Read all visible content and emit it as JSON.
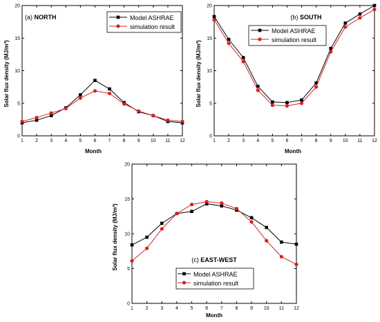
{
  "chart_data": [
    {
      "type": "line",
      "title_prefix": "(a)",
      "title": "NORTH",
      "xlabel": "Month",
      "ylabel": "Solar flux density (MJ/m²)",
      "xlim": [
        1,
        12
      ],
      "ylim": [
        0,
        20
      ],
      "x": [
        1,
        2,
        3,
        4,
        5,
        6,
        7,
        8,
        9,
        10,
        11,
        12
      ],
      "xticks": [
        1,
        2,
        3,
        4,
        5,
        6,
        7,
        8,
        9,
        10,
        11,
        12
      ],
      "yticks": [
        0,
        5,
        10,
        15,
        20
      ],
      "legend_position": "top-right",
      "series": [
        {
          "name": "Model ASHRAE",
          "color": "#000000",
          "marker": "square",
          "values": [
            2.0,
            2.4,
            3.1,
            4.3,
            6.3,
            8.5,
            7.2,
            5.1,
            3.7,
            3.1,
            2.2,
            2.0
          ]
        },
        {
          "name": "simulation result",
          "color": "#d62020",
          "marker": "circle",
          "values": [
            2.2,
            2.8,
            3.5,
            4.2,
            5.8,
            6.9,
            6.5,
            4.9,
            3.8,
            3.1,
            2.4,
            2.2
          ]
        }
      ]
    },
    {
      "type": "line",
      "title_prefix": "(b)",
      "title": "SOUTH",
      "xlabel": "Month",
      "ylabel": "Solar flux density (MJ/m²)",
      "xlim": [
        1,
        12
      ],
      "ylim": [
        0,
        20
      ],
      "x": [
        1,
        2,
        3,
        4,
        5,
        6,
        7,
        8,
        9,
        10,
        11,
        12
      ],
      "xticks": [
        1,
        2,
        3,
        4,
        5,
        6,
        7,
        8,
        9,
        10,
        11,
        12
      ],
      "yticks": [
        0,
        5,
        10,
        15,
        20
      ],
      "legend_position": "top-right",
      "series": [
        {
          "name": "Model ASHRAE",
          "color": "#000000",
          "marker": "square",
          "values": [
            18.3,
            14.8,
            12.0,
            7.6,
            5.2,
            5.1,
            5.5,
            8.1,
            13.4,
            17.3,
            18.7,
            20.0
          ]
        },
        {
          "name": "simulation result",
          "color": "#d62020",
          "marker": "circle",
          "values": [
            17.8,
            14.2,
            11.4,
            7.0,
            4.7,
            4.6,
            5.0,
            7.5,
            12.9,
            16.7,
            18.1,
            19.4
          ]
        }
      ]
    },
    {
      "type": "line",
      "title_prefix": "(c)",
      "title": "EAST-WEST",
      "xlabel": "Month",
      "ylabel": "Solar flux density (MJ/m²)",
      "xlim": [
        1,
        12
      ],
      "ylim": [
        0,
        20
      ],
      "x": [
        1,
        2,
        3,
        4,
        5,
        6,
        7,
        8,
        9,
        10,
        11,
        12
      ],
      "xticks": [
        1,
        2,
        3,
        4,
        5,
        6,
        7,
        8,
        9,
        10,
        11,
        12
      ],
      "yticks": [
        0,
        5,
        10,
        15,
        20
      ],
      "legend_position": "bottom-center",
      "series": [
        {
          "name": "Model ASHRAE",
          "color": "#000000",
          "marker": "square",
          "values": [
            8.4,
            9.5,
            11.5,
            12.9,
            13.2,
            14.3,
            14.0,
            13.4,
            12.3,
            10.9,
            8.8,
            8.5
          ]
        },
        {
          "name": "simulation result",
          "color": "#d62020",
          "marker": "circle",
          "values": [
            6.1,
            7.9,
            10.7,
            12.9,
            14.2,
            14.6,
            14.4,
            13.6,
            11.7,
            9.0,
            6.7,
            5.6
          ]
        }
      ]
    }
  ]
}
